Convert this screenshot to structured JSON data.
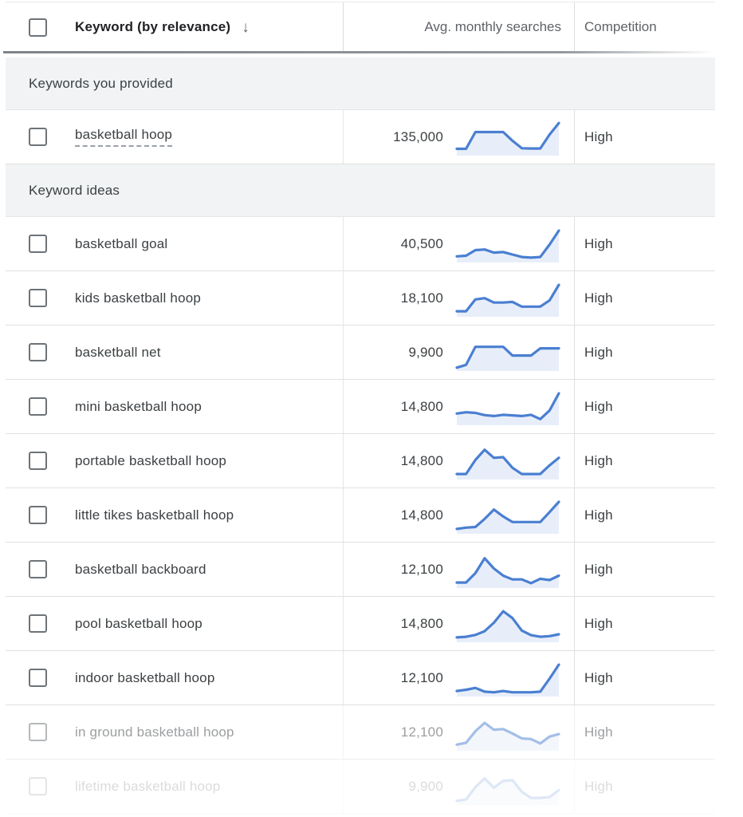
{
  "colors": {
    "sparkline_line": "#4a7fd1",
    "sparkline_fill": "#e8eef9",
    "section_background": "#f1f3f4",
    "row_border": "#e0e0e0",
    "header_shadow": "#85898d",
    "text_primary": "#3c4043",
    "text_secondary": "#5f6368"
  },
  "table": {
    "header": {
      "keyword_column": "Keyword (by relevance)",
      "sort_icon": "arrow-down",
      "sort_icon_glyph": "↓",
      "searches_column": "Avg. monthly searches",
      "competition_column": "Competition"
    },
    "groups": [
      {
        "label": "Keywords you provided",
        "rows": [
          {
            "keyword": "basketball hoop",
            "avg_monthly_searches": "135,000",
            "competition": "High",
            "underlined": true,
            "fade": 1,
            "trend": [
              14,
              14,
              68,
              68,
              68,
              68,
              40,
              16,
              15,
              15,
              60,
              97
            ]
          }
        ]
      },
      {
        "label": "Keyword ideas",
        "rows": [
          {
            "keyword": "basketball goal",
            "avg_monthly_searches": "40,500",
            "competition": "High",
            "underlined": false,
            "fade": 1,
            "trend": [
              12,
              14,
              32,
              34,
              24,
              26,
              18,
              10,
              8,
              10,
              50,
              95
            ]
          },
          {
            "keyword": "kids basketball hoop",
            "avg_monthly_searches": "18,100",
            "competition": "High",
            "underlined": false,
            "fade": 1,
            "trend": [
              10,
              10,
              48,
              52,
              38,
              38,
              40,
              25,
              25,
              25,
              45,
              95
            ]
          },
          {
            "keyword": "basketball net",
            "avg_monthly_searches": "9,900",
            "competition": "High",
            "underlined": false,
            "fade": 1,
            "trend": [
              3,
              12,
              70,
              70,
              70,
              70,
              42,
              42,
              42,
              65,
              65,
              65
            ]
          },
          {
            "keyword": "mini basketball hoop",
            "avg_monthly_searches": "14,800",
            "competition": "High",
            "underlined": false,
            "fade": 1,
            "trend": [
              30,
              34,
              32,
              25,
              22,
              26,
              24,
              22,
              26,
              12,
              40,
              95
            ]
          },
          {
            "keyword": "portable basketball hoop",
            "avg_monthly_searches": "14,800",
            "competition": "High",
            "underlined": false,
            "fade": 1,
            "trend": [
              10,
              10,
              55,
              88,
              62,
              64,
              30,
              10,
              10,
              10,
              38,
              62
            ]
          },
          {
            "keyword": "little tikes basketball hoop",
            "avg_monthly_searches": "14,800",
            "competition": "High",
            "underlined": false,
            "fade": 1,
            "trend": [
              8,
              12,
              14,
              40,
              70,
              48,
              30,
              30,
              30,
              30,
              62,
              95
            ]
          },
          {
            "keyword": "basketball backboard",
            "avg_monthly_searches": "12,100",
            "competition": "High",
            "underlined": false,
            "fade": 1,
            "trend": [
              10,
              10,
              40,
              88,
              55,
              32,
              20,
              20,
              8,
              22,
              18,
              32
            ]
          },
          {
            "keyword": "pool basketball hoop",
            "avg_monthly_searches": "14,800",
            "competition": "High",
            "underlined": false,
            "fade": 1,
            "trend": [
              8,
              10,
              16,
              28,
              55,
              92,
              70,
              30,
              15,
              10,
              12,
              18
            ]
          },
          {
            "keyword": "indoor basketball hoop",
            "avg_monthly_searches": "12,100",
            "competition": "High",
            "underlined": false,
            "fade": 1,
            "trend": [
              10,
              14,
              20,
              8,
              6,
              10,
              6,
              6,
              6,
              8,
              50,
              95
            ]
          },
          {
            "keyword": "in ground basketball hoop",
            "avg_monthly_searches": "12,100",
            "competition": "High",
            "underlined": false,
            "fade": 0.5,
            "trend": [
              12,
              18,
              55,
              82,
              60,
              62,
              48,
              32,
              30,
              16,
              38,
              46
            ]
          },
          {
            "keyword": "lifetime basketball hoop",
            "avg_monthly_searches": "9,900",
            "competition": "High",
            "underlined": false,
            "fade": 0.18,
            "trend": [
              6,
              10,
              50,
              78,
              48,
              70,
              72,
              35,
              15,
              15,
              18,
              40
            ]
          }
        ]
      }
    ]
  }
}
